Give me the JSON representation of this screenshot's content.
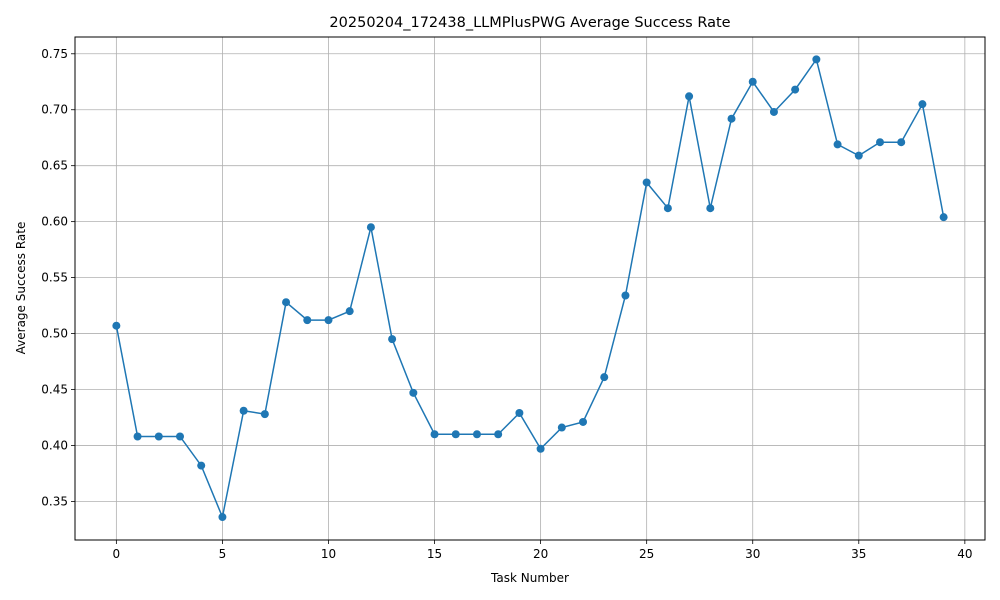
{
  "chart_data": {
    "type": "line",
    "title": "20250204_172438_LLMPlusPWG Average Success Rate",
    "xlabel": "Task Number",
    "ylabel": "Average Success Rate",
    "xlim": [
      -1.95,
      40.95
    ],
    "ylim": [
      0.3155,
      0.765
    ],
    "xticks": [
      0,
      5,
      10,
      15,
      20,
      25,
      30,
      35,
      40
    ],
    "yticks": [
      0.35,
      0.4,
      0.45,
      0.5,
      0.55,
      0.6,
      0.65,
      0.7,
      0.75
    ],
    "xtick_labels": [
      "0",
      "5",
      "10",
      "15",
      "20",
      "25",
      "30",
      "35",
      "40"
    ],
    "ytick_labels": [
      "0.35",
      "0.40",
      "0.45",
      "0.50",
      "0.55",
      "0.60",
      "0.65",
      "0.70",
      "0.75"
    ],
    "grid": true,
    "marker": "circle",
    "color": "#1f77b4",
    "series": [
      {
        "x": [
          0,
          1,
          2,
          3,
          4,
          5,
          6,
          7,
          8,
          9,
          10,
          11,
          12,
          13,
          14,
          15,
          16,
          17,
          18,
          19,
          20,
          21,
          22,
          23,
          24,
          25,
          26,
          27,
          28,
          29,
          30,
          31,
          32,
          33,
          34,
          35,
          36,
          37,
          38,
          39
        ],
        "values": [
          0.507,
          0.408,
          0.408,
          0.408,
          0.382,
          0.336,
          0.431,
          0.428,
          0.528,
          0.512,
          0.512,
          0.52,
          0.595,
          0.495,
          0.447,
          0.41,
          0.41,
          0.41,
          0.41,
          0.429,
          0.397,
          0.416,
          0.421,
          0.461,
          0.534,
          0.635,
          0.612,
          0.712,
          0.612,
          0.692,
          0.725,
          0.698,
          0.718,
          0.745,
          0.669,
          0.659,
          0.671,
          0.671,
          0.705,
          0.604
        ]
      }
    ]
  }
}
